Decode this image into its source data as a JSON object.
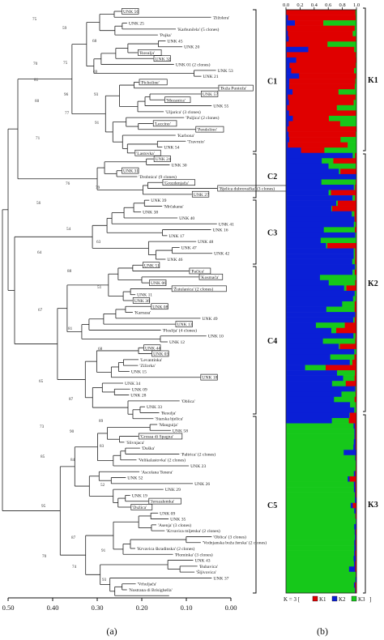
{
  "panel_a": {
    "label": "(a)",
    "axis_ticks": [
      "0.50",
      "0.40",
      "0.30",
      "0.20",
      "0.10",
      "0.00"
    ],
    "clusters": [
      {
        "name": "C1",
        "y0": 12,
        "y1": 187
      },
      {
        "name": "C2",
        "y0": 190,
        "y1": 244
      },
      {
        "name": "C3",
        "y0": 247,
        "y1": 326
      },
      {
        "name": "C4",
        "y0": 329,
        "y1": 511
      },
      {
        "name": "C5",
        "y0": 514,
        "y1": 732
      }
    ],
    "leaves": [
      {
        "t": "UNK 56",
        "b": true
      },
      {
        "t": "'Zižolera'",
        "b": false
      },
      {
        "t": "UNK 25",
        "b": false
      },
      {
        "t": "'Karbunčela' (5 clones)",
        "b": false
      },
      {
        "t": "'Pujka'",
        "b": false
      },
      {
        "t": "UNK 45",
        "b": false
      },
      {
        "t": "UNK 20",
        "b": false
      },
      {
        "t": "'Rosulja'",
        "b": true
      },
      {
        "t": "UNK 32",
        "b": true
      },
      {
        "t": "UNK 01 (2 clones)",
        "b": false
      },
      {
        "t": "UNK 53",
        "b": false
      },
      {
        "t": "UNK 21",
        "b": false
      },
      {
        "t": "'Picholine'",
        "b": true
      },
      {
        "t": "'Buža Puntoža'",
        "b": true
      },
      {
        "t": "UNK 57",
        "b": true
      },
      {
        "t": "'Mezanica'",
        "b": true
      },
      {
        "t": "UNK 55",
        "b": false
      },
      {
        "t": "'Uljarica' (3 clones)",
        "b": false
      },
      {
        "t": "'Puljica' (2 clones)",
        "b": false
      },
      {
        "t": "'Leccino'",
        "b": true
      },
      {
        "t": "'Pendolino'",
        "b": true
      },
      {
        "t": "'Karbona'",
        "b": false
      },
      {
        "t": "'Travruio'",
        "b": false
      },
      {
        "t": "UNK 54",
        "b": false
      },
      {
        "t": "'Lastovka'",
        "b": true
      },
      {
        "t": "UNK 24",
        "b": true
      },
      {
        "t": "UNK 30",
        "b": false
      },
      {
        "t": "UNK 31",
        "b": true
      },
      {
        "t": "'Drobnica' (9 clones)",
        "b": false
      },
      {
        "t": "'Grozdenjača'",
        "b": true
      },
      {
        "t": "'Bjelica dubrovačka' (3 clones)",
        "b": true
      },
      {
        "t": "UNK 27",
        "b": true
      },
      {
        "t": "UNK 39",
        "b": false
      },
      {
        "t": "'Mrčakana'",
        "b": false
      },
      {
        "t": "UNK 38",
        "b": false
      },
      {
        "t": "UNK 40",
        "b": false
      },
      {
        "t": "UNK 41",
        "b": false
      },
      {
        "t": "UNK 16",
        "b": false
      },
      {
        "t": "UNK 17",
        "b": false
      },
      {
        "t": "UNK 48",
        "b": false
      },
      {
        "t": "UNK 47",
        "b": false
      },
      {
        "t": "UNK 42",
        "b": false
      },
      {
        "t": "UNK 46",
        "b": false
      },
      {
        "t": "UNK 51",
        "b": true
      },
      {
        "t": "'Pačica'",
        "b": true
      },
      {
        "t": "'Kosmača'",
        "b": true
      },
      {
        "t": "UNK 06",
        "b": true
      },
      {
        "t": "'Žutulanica' (2 clones)",
        "b": true
      },
      {
        "t": "UNK 11",
        "b": false
      },
      {
        "t": "UNK 36",
        "b": true
      },
      {
        "t": "UNK 08",
        "b": true
      },
      {
        "t": "'Karnasa'",
        "b": false
      },
      {
        "t": "UNK 49",
        "b": false
      },
      {
        "t": "UNK 13",
        "b": true
      },
      {
        "t": "'Ploslija' (4 clones)",
        "b": false
      },
      {
        "t": "UNK 10",
        "b": false
      },
      {
        "t": "UNK 12",
        "b": false
      },
      {
        "t": "UNK 44",
        "b": true
      },
      {
        "t": "UNK 03",
        "b": true
      },
      {
        "t": "'Levantinka'",
        "b": false
      },
      {
        "t": "'Zižorka'",
        "b": false
      },
      {
        "t": "UNK 15",
        "b": false
      },
      {
        "t": "UNK 18",
        "b": true
      },
      {
        "t": "UNK 34",
        "b": false
      },
      {
        "t": "UNK 09",
        "b": false
      },
      {
        "t": "UNK 28",
        "b": false
      },
      {
        "t": "'Oblica'",
        "b": false
      },
      {
        "t": "UNK 33",
        "b": false
      },
      {
        "t": "'Resulja'",
        "b": false
      },
      {
        "t": "'Starska bjelica'",
        "b": false
      },
      {
        "t": "'Mauguija'",
        "b": false
      },
      {
        "t": "UNK 58",
        "b": false
      },
      {
        "t": "'Grossa di Spagna'",
        "b": true
      },
      {
        "t": "'Slivnjaca'",
        "b": false
      },
      {
        "t": "'Duška'",
        "b": false
      },
      {
        "t": "'Paltrica' (2 clones)",
        "b": false
      },
      {
        "t": "'Velikalastovka' (2 clones)",
        "b": false
      },
      {
        "t": "UNK 23",
        "b": false
      },
      {
        "t": "'Ascolana Tenera'",
        "b": false
      },
      {
        "t": "UNK 52",
        "b": false
      },
      {
        "t": "UNK 26",
        "b": false
      },
      {
        "t": "UNK 29",
        "b": false
      },
      {
        "t": "UNK 19",
        "b": false
      },
      {
        "t": "'Jeruzalemka'",
        "b": true
      },
      {
        "t": "'Dužica'",
        "b": true
      },
      {
        "t": "UNK 09",
        "b": false
      },
      {
        "t": "UNK 35",
        "b": false
      },
      {
        "t": "'Asenja' (3 clones)",
        "b": false
      },
      {
        "t": "'Krvavica mljetska' (2 clones)",
        "b": false
      },
      {
        "t": "'Oblica' (3 clones)",
        "b": false
      },
      {
        "t": "'Vodnjanska buža žerska' (2 clones)",
        "b": false
      },
      {
        "t": "'Krvavica škradinska' (2 clones)",
        "b": false
      },
      {
        "t": "'Plominka' (3 clones)",
        "b": false
      },
      {
        "t": "UNK 43",
        "b": false
      },
      {
        "t": "'Bubavica'",
        "b": false
      },
      {
        "t": "'Šljivovica'",
        "b": false
      },
      {
        "t": "UNK 37",
        "b": false
      },
      {
        "t": "'Vrhuljača'",
        "b": false
      },
      {
        "t": "'Nostrana di Brisighella'",
        "b": false
      }
    ],
    "bootstrap": [
      {
        "t": "75",
        "y": 25
      },
      {
        "t": "59",
        "y": 36
      },
      {
        "t": "68",
        "y": 52
      },
      {
        "t": "70",
        "y": 80
      },
      {
        "t": "75",
        "y": 79
      },
      {
        "t": "69",
        "y": 90
      },
      {
        "t": "81",
        "y": 100
      },
      {
        "t": "96",
        "y": 118
      },
      {
        "t": "93",
        "y": 118
      },
      {
        "t": "60",
        "y": 126
      },
      {
        "t": "77",
        "y": 141
      },
      {
        "t": "91",
        "y": 153
      },
      {
        "t": "71",
        "y": 172
      },
      {
        "t": "76",
        "y": 228
      },
      {
        "t": "79",
        "y": 233
      },
      {
        "t": "56",
        "y": 252
      },
      {
        "t": "54",
        "y": 284
      },
      {
        "t": "63",
        "y": 300
      },
      {
        "t": "64",
        "y": 313
      },
      {
        "t": "88",
        "y": 336
      },
      {
        "t": "51",
        "y": 356
      },
      {
        "t": "67",
        "y": 384
      },
      {
        "t": "81",
        "y": 407
      },
      {
        "t": "68",
        "y": 432
      },
      {
        "t": "65",
        "y": 472
      },
      {
        "t": "87",
        "y": 494
      },
      {
        "t": "89",
        "y": 521
      },
      {
        "t": "73",
        "y": 528
      },
      {
        "t": "90",
        "y": 534
      },
      {
        "t": "83",
        "y": 552
      },
      {
        "t": "85",
        "y": 565
      },
      {
        "t": "84",
        "y": 569
      },
      {
        "t": "52",
        "y": 600
      },
      {
        "t": "95",
        "y": 626
      },
      {
        "t": "87",
        "y": 665
      },
      {
        "t": "91",
        "y": 681
      },
      {
        "t": "70",
        "y": 688
      },
      {
        "t": "74",
        "y": 701
      },
      {
        "t": "93",
        "y": 717
      }
    ]
  },
  "panel_b": {
    "label": "(b)",
    "top_ticks": [
      "0.0",
      "0.2",
      "0.4",
      "0.6",
      "0.8",
      "1.0"
    ],
    "clusters": [
      {
        "name": "K1",
        "y0": 10,
        "y1": 186
      },
      {
        "name": "K2",
        "y0": 190,
        "y1": 508
      },
      {
        "name": "K3",
        "y0": 512,
        "y1": 732
      }
    ],
    "legend": {
      "prefix": "K = 3  [",
      "items": [
        "K1",
        "K2",
        "K3"
      ],
      "suffix": "]"
    },
    "colors": {
      "K1": "#e00000",
      "K2": "#0a1fd6",
      "K3": "#16c81a"
    }
  }
}
